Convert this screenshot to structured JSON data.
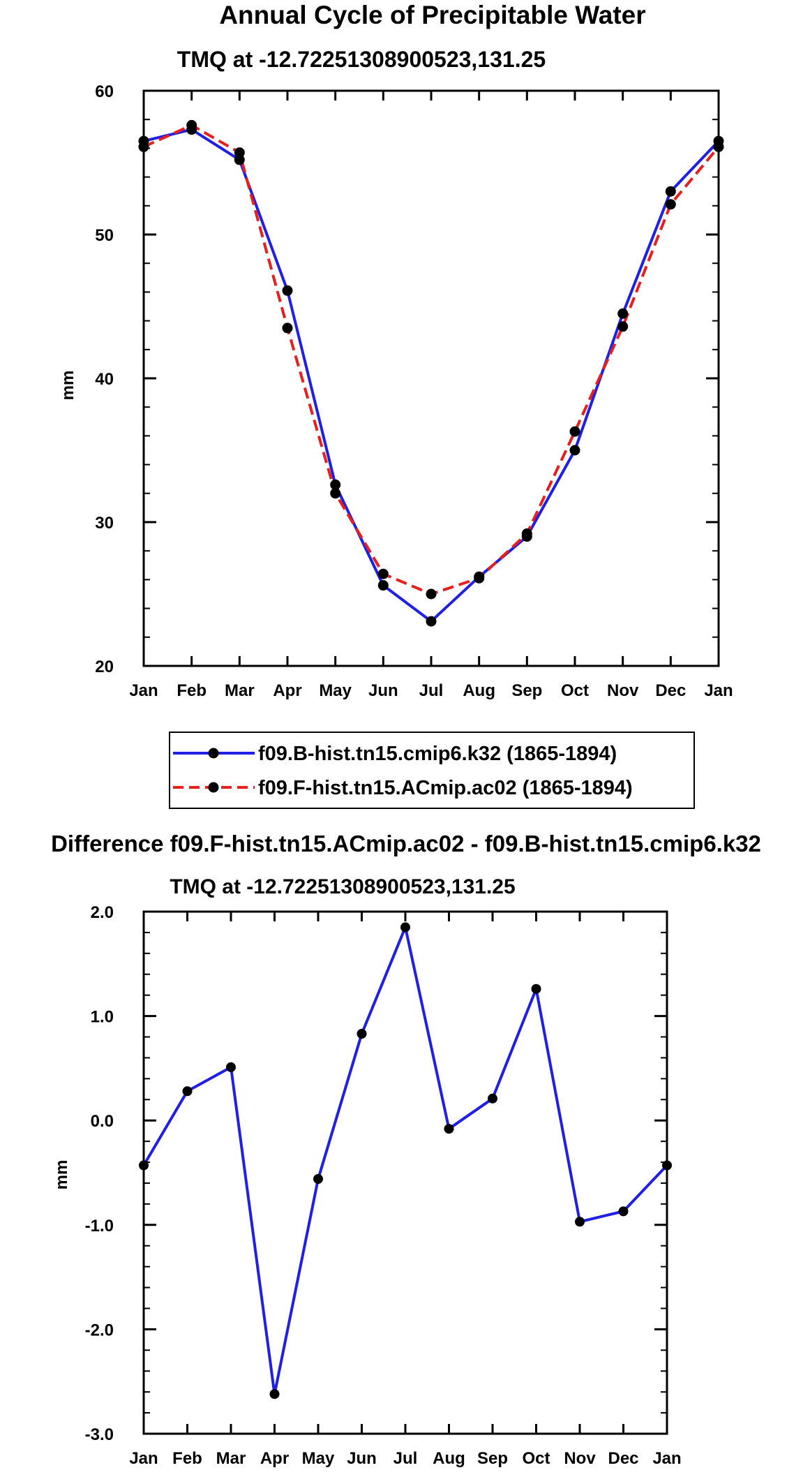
{
  "colors": {
    "series_b": "#1f1fe6",
    "series_f": "#e61f1f",
    "marker": "#000000",
    "axis": "#000000"
  },
  "chart_data": [
    {
      "type": "line",
      "title": "Annual Cycle of Precipitable Water",
      "subtitle": "TMQ at -12.72251308900523,131.25",
      "xlabel": "",
      "ylabel": "mm",
      "categories": [
        "Jan",
        "Feb",
        "Mar",
        "Apr",
        "May",
        "Jun",
        "Jul",
        "Aug",
        "Sep",
        "Oct",
        "Nov",
        "Dec",
        "Jan"
      ],
      "ylim": [
        20,
        60
      ],
      "yticks": [
        20,
        30,
        40,
        50,
        60
      ],
      "ytick_labels": [
        "20",
        "30",
        "40",
        "50",
        "60"
      ],
      "series": [
        {
          "name": "f09.B-hist.tn15.cmip6.k32 (1865-1894)",
          "style": "solid",
          "color": "#1f1fe6",
          "values": [
            56.5,
            57.3,
            55.2,
            46.1,
            32.6,
            25.6,
            23.1,
            26.2,
            29.0,
            35.0,
            44.5,
            53.0,
            56.5
          ]
        },
        {
          "name": "f09.F-hist.tn15.ACmip.ac02 (1865-1894)",
          "style": "dashed",
          "color": "#e61f1f",
          "values": [
            56.1,
            57.6,
            55.7,
            43.5,
            32.0,
            26.4,
            25.0,
            26.1,
            29.2,
            36.3,
            43.6,
            52.1,
            56.1
          ]
        }
      ]
    },
    {
      "type": "line",
      "title": "Difference f09.F-hist.tn15.ACmip.ac02 - f09.B-hist.tn15.cmip6.k32",
      "subtitle": "TMQ at -12.72251308900523,131.25",
      "xlabel": "",
      "ylabel": "mm",
      "categories": [
        "Jan",
        "Feb",
        "Mar",
        "Apr",
        "May",
        "Jun",
        "Jul",
        "Aug",
        "Sep",
        "Oct",
        "Nov",
        "Dec",
        "Jan"
      ],
      "ylim": [
        -3.0,
        2.0
      ],
      "yticks": [
        -3.0,
        -2.0,
        -1.0,
        0.0,
        1.0,
        2.0
      ],
      "ytick_labels": [
        "-3.0",
        "-2.0",
        "-1.0",
        "0.0",
        "1.0",
        "2.0"
      ],
      "series": [
        {
          "name": "difference",
          "style": "solid",
          "color": "#1f1fe6",
          "values": [
            -0.43,
            0.28,
            0.51,
            -2.62,
            -0.56,
            0.83,
            1.85,
            -0.08,
            0.21,
            1.26,
            -0.97,
            -0.87,
            -0.43
          ]
        }
      ]
    }
  ]
}
